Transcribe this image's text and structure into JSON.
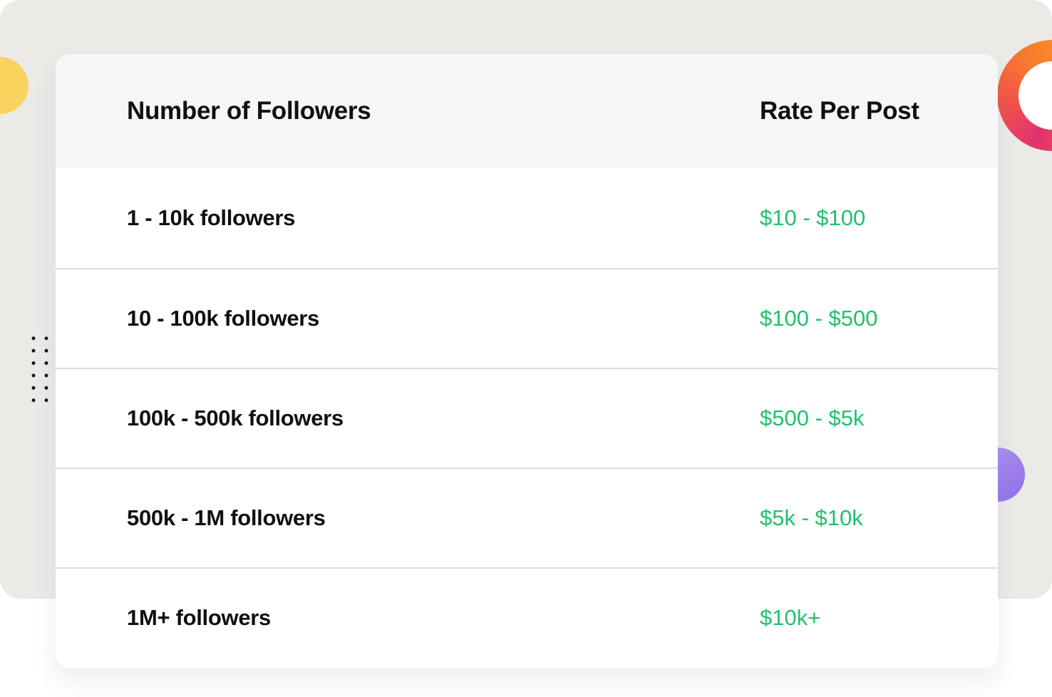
{
  "colors": {
    "background": "#ebeae7",
    "card": "#ffffff",
    "header_background": "#f6f6f6",
    "text": "#101010",
    "rate_text": "#21c16b",
    "accent_yellow": "#f8d35e",
    "accent_orange": "#f7782f",
    "accent_pink": "#e0326f",
    "accent_purple": "#9f7bea"
  },
  "decorations": {
    "shapes": [
      "yellow-circle-icon",
      "gradient-ring-icon",
      "dot-grid-icon",
      "purple-circle-icon"
    ]
  },
  "table": {
    "headers": {
      "followers": "Number of Followers",
      "rate": "Rate Per Post"
    },
    "rows": [
      {
        "followers": "1 - 10k followers",
        "rate": "$10 - $100"
      },
      {
        "followers": "10 - 100k followers",
        "rate": "$100 - $500"
      },
      {
        "followers": "100k - 500k followers",
        "rate": "$500 - $5k"
      },
      {
        "followers": "500k - 1M followers",
        "rate": "$5k - $10k"
      },
      {
        "followers": "1M+ followers",
        "rate": "$10k+"
      }
    ]
  }
}
